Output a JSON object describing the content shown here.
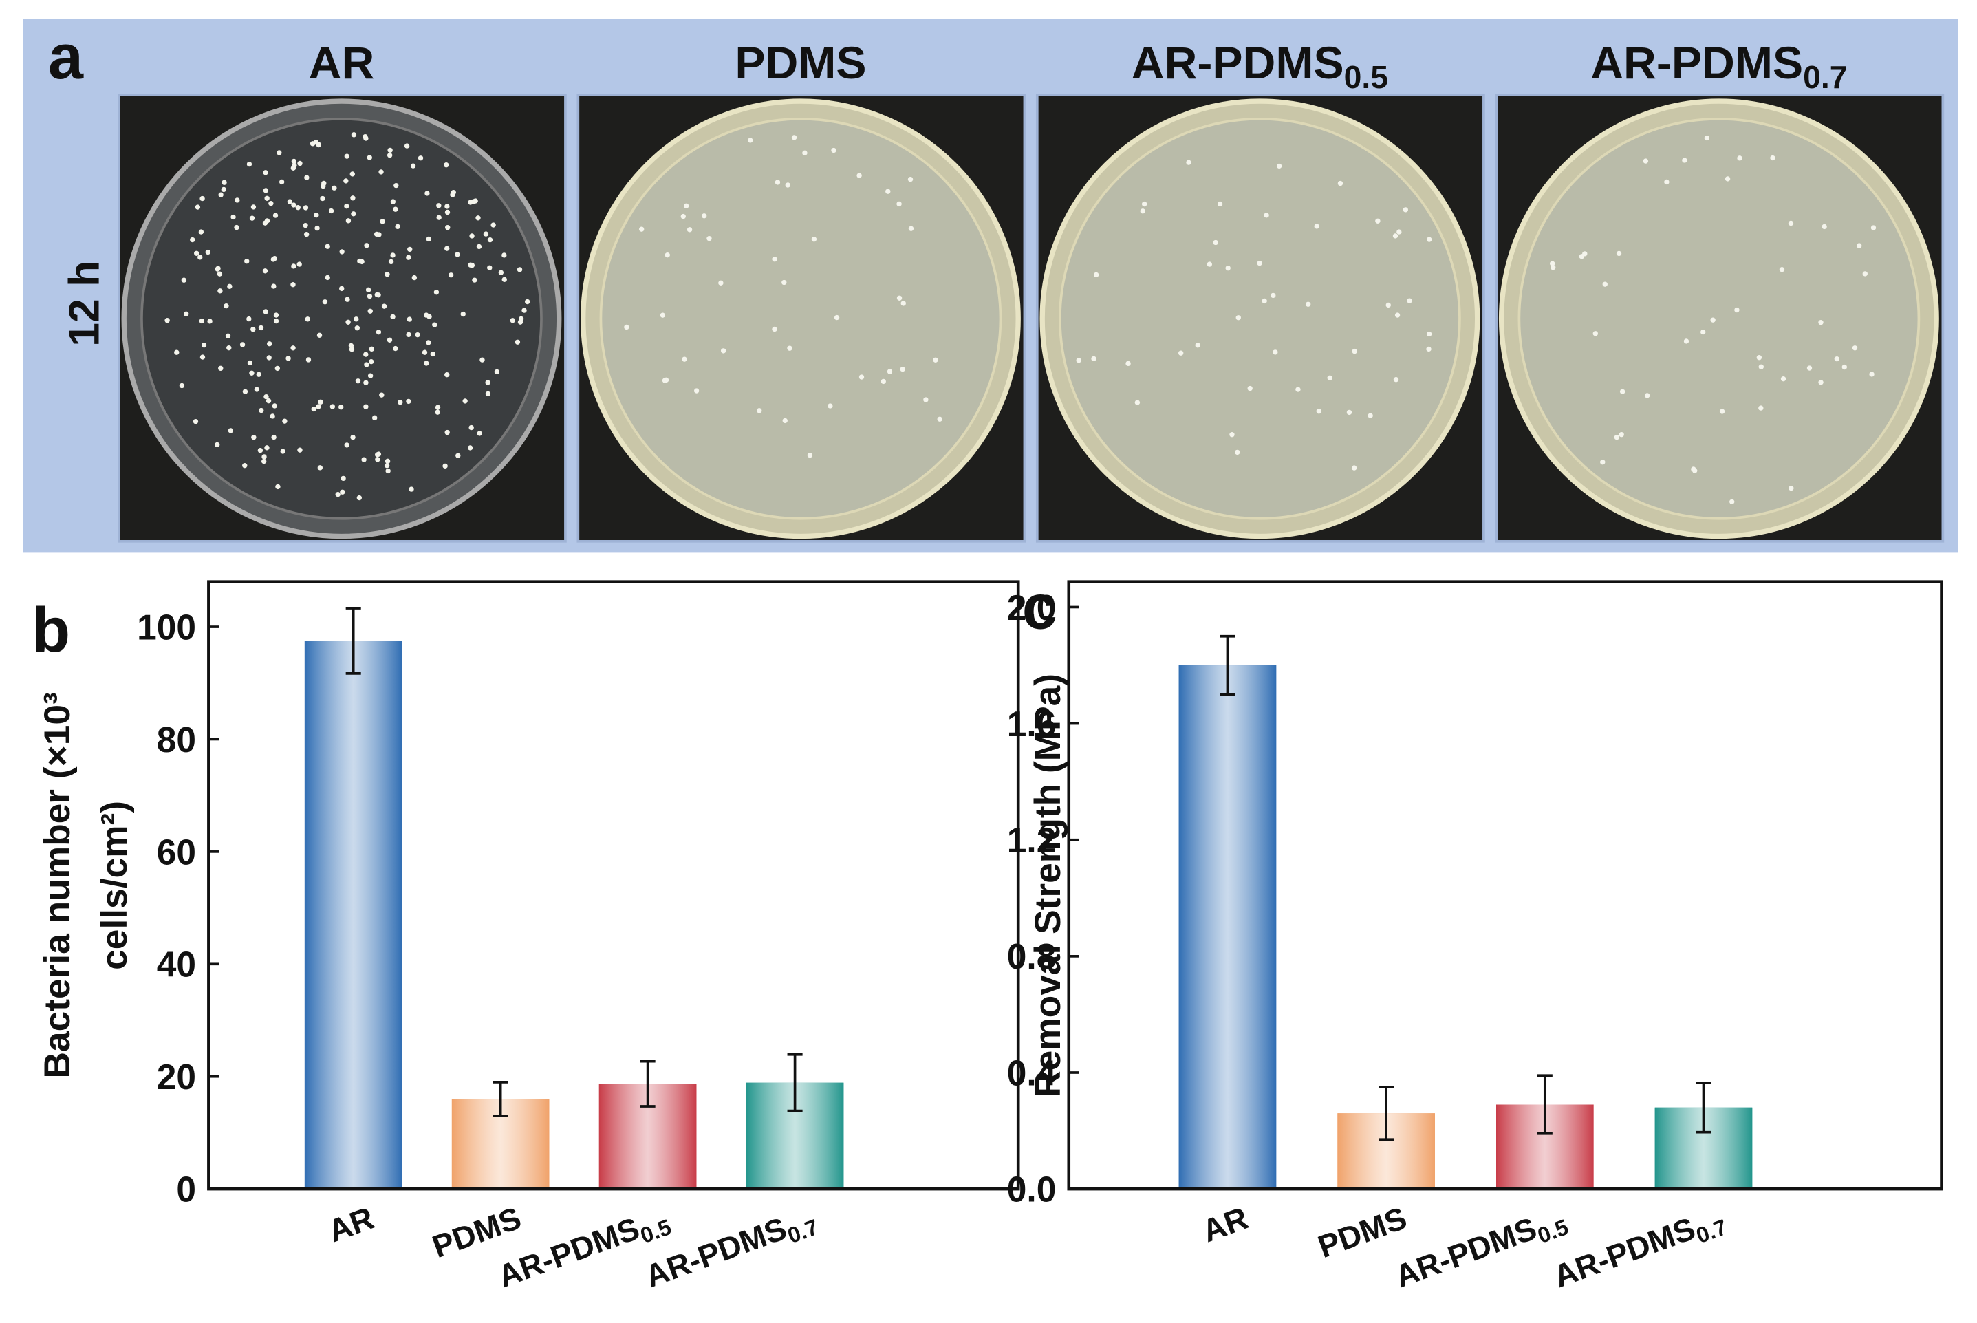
{
  "panel_a": {
    "label": "a",
    "row_label": "12 h",
    "titles": [
      "AR",
      "PDMS",
      "AR-PDMS0.5",
      "AR-PDMS0.7"
    ]
  },
  "chart_data": [
    {
      "type": "bar",
      "panel_label": "b",
      "ylabel": [
        "Bacteria number (×10³",
        "cells/cm²)"
      ],
      "categories": [
        "AR",
        "PDMS",
        "AR-PDMS0.5",
        "AR-PDMS0.7"
      ],
      "values": [
        97.5,
        16,
        18.7,
        18.9
      ],
      "errors": [
        5.8,
        3,
        4,
        5
      ],
      "colors": [
        "#2f6db3",
        "#f0a26a",
        "#c83c48",
        "#22958c"
      ],
      "ylim": [
        0,
        108
      ],
      "yticks": [
        0,
        20,
        40,
        60,
        80,
        100
      ]
    },
    {
      "type": "bar",
      "panel_label": "c",
      "ylabel": [
        "Removal Strength (MPa)"
      ],
      "categories": [
        "AR",
        "PDMS",
        "AR-PDMS0.5",
        "AR-PDMS0.7"
      ],
      "values": [
        1.8,
        0.26,
        0.29,
        0.28
      ],
      "errors": [
        0.1,
        0.09,
        0.1,
        0.085
      ],
      "colors": [
        "#2f6db3",
        "#f0a26a",
        "#c83c48",
        "#22958c"
      ],
      "ylim": [
        0,
        2.087
      ],
      "yticks": [
        {
          "value": 0,
          "label": "0.0"
        },
        {
          "value": 0.4,
          "label": "0.4"
        },
        {
          "value": 0.8,
          "label": "0.8"
        },
        {
          "value": 1.2,
          "label": "1.2"
        },
        {
          "value": 1.6,
          "label": "1.6"
        },
        {
          "value": 2,
          "label": "2.0"
        }
      ]
    }
  ]
}
